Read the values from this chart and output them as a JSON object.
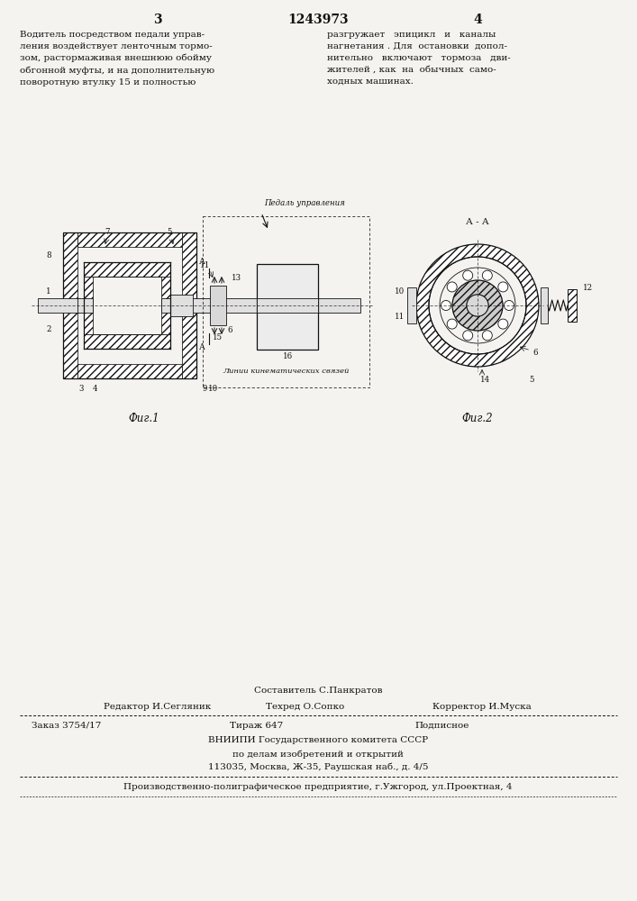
{
  "bg_color": "#f5f3f0",
  "page_number_left": "3",
  "page_number_center": "1243973",
  "page_number_right": "4",
  "text_col1": "Водитель посредством педали управ-\nления воздействует ленточным тормо-\nзом, растормаживая внешнюю обойму\nобгонной муфты, и на дополнительную\nповоротную втулку 15 и полностью",
  "text_col2": "разгружает   эпицикл   и   каналы\nнагнетания . Для  остановки  допол-\nнительно   включают   тормоза   дви-\nжителей , как  на  обычных  само-\nходных машинах.",
  "fig1_label": "Фиг.1",
  "fig2_label": "Фиг.2",
  "pedal_label": "Педаль управления",
  "kinematic_label": "Линии кинематических связей",
  "aa_label": "А - А",
  "editor_label": "Редактор И.Сегляник",
  "techred_label": "Техред О.Сопко",
  "korrektor_label": "Корректор И.Муска",
  "sostavitel_label": "Составитель С.Панкратов",
  "order_label": "Заказ 3754/17",
  "tirazh_label": "Тираж 647",
  "podpisnoe_label": "Подписное",
  "vniip_line1": "ВНИИПИ Государственного комитета СССР",
  "vniip_line2": "по делам изобретений и открытий",
  "vniip_line3": "113035, Москва, Ж-35, Раушская наб., д. 4/5",
  "prod_line": "Производственно-полиграфическое предприятие, г.Ужгород, ул.Проектная, 4"
}
